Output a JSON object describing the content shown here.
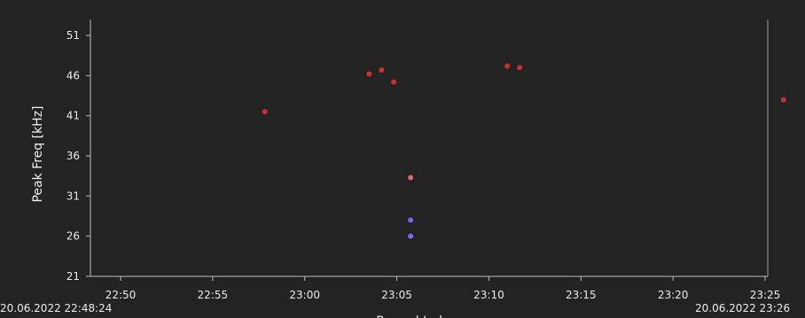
{
  "chart_data": {
    "type": "scatter",
    "ylabel": "Peak Freq [kHz]",
    "xlabel": "Record Index (partially cut off)",
    "y_ticks": [
      51,
      46,
      41,
      36,
      31,
      26,
      21
    ],
    "ylim": [
      21,
      53
    ],
    "x_ticks": [
      "22:50",
      "22:55",
      "23:00",
      "23:05",
      "23:10",
      "23:15",
      "23:20",
      "23:25"
    ],
    "x_range_labels": {
      "start": "20.06.2022 22:48:24",
      "end": "20.06.2022 23:26"
    },
    "grid": false,
    "series": [
      {
        "color": "#c83232",
        "points": [
          {
            "x": "22:57:50",
            "y": 41.5
          },
          {
            "x": "23:03:30",
            "y": 46.2
          },
          {
            "x": "23:04:10",
            "y": 46.7
          },
          {
            "x": "23:04:50",
            "y": 45.2
          },
          {
            "x": "23:11:00",
            "y": 47.2
          },
          {
            "x": "23:11:40",
            "y": 47.0
          },
          {
            "x": "23:26:00",
            "y": 43.0
          }
        ]
      },
      {
        "color": "#e06868",
        "points": [
          {
            "x": "23:05:45",
            "y": 33.3
          }
        ]
      },
      {
        "color": "#7b68ee",
        "points": [
          {
            "x": "23:05:45",
            "y": 28.0
          },
          {
            "x": "23:05:45",
            "y": 26.0
          }
        ]
      }
    ]
  }
}
